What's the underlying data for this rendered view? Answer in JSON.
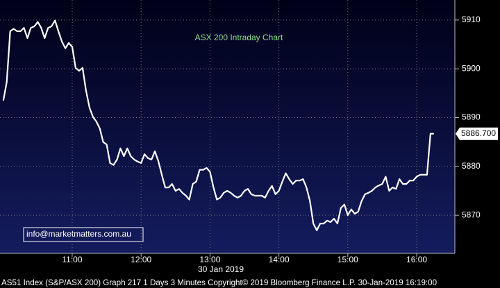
{
  "chart_data": {
    "type": "line",
    "title": "ASX 200 Intraday Chart",
    "annotation": "info@marketmatters.com.au",
    "date_label": "30 Jan 2019",
    "footer": "AS51 Index (S&P/ASX 200) Graph 217 1 Days 3 Minutes Copyright© 2019 Bloomberg Finance L.P. 30-Jan-2019 16:19:00",
    "last_label": "5886.700",
    "x": [
      10,
      10.05,
      10.1,
      10.15,
      10.2,
      10.25,
      10.3,
      10.35,
      10.4,
      10.45,
      10.5,
      10.55,
      10.6,
      10.65,
      10.7,
      10.75,
      10.8,
      10.85,
      10.9,
      10.95,
      11,
      11.05,
      11.1,
      11.15,
      11.2,
      11.25,
      11.3,
      11.35,
      11.4,
      11.45,
      11.5,
      11.55,
      11.6,
      11.65,
      11.7,
      11.75,
      11.8,
      11.85,
      11.9,
      11.95,
      12,
      12.05,
      12.1,
      12.15,
      12.2,
      12.25,
      12.3,
      12.35,
      12.4,
      12.45,
      12.5,
      12.55,
      12.6,
      12.65,
      12.7,
      12.75,
      12.8,
      12.85,
      12.9,
      12.95,
      13,
      13.05,
      13.1,
      13.15,
      13.2,
      13.25,
      13.3,
      13.35,
      13.4,
      13.45,
      13.5,
      13.55,
      13.6,
      13.65,
      13.7,
      13.75,
      13.8,
      13.85,
      13.9,
      13.95,
      14,
      14.05,
      14.1,
      14.15,
      14.2,
      14.25,
      14.3,
      14.35,
      14.4,
      14.45,
      14.5,
      14.55,
      14.6,
      14.65,
      14.7,
      14.75,
      14.8,
      14.85,
      14.9,
      14.95,
      15,
      15.05,
      15.1,
      15.15,
      15.2,
      15.25,
      15.3,
      15.35,
      15.4,
      15.45,
      15.5,
      15.55,
      15.6,
      15.65,
      15.7,
      15.75,
      15.8,
      15.85,
      15.9,
      15.95,
      16,
      16.05,
      16.1,
      16.15,
      16.2,
      16.25
    ],
    "series": [
      {
        "name": "AS51 Index",
        "color": "#ffffff",
        "values": [
          5893.5,
          5897.3,
          5907.7,
          5908.2,
          5907.7,
          5907.7,
          5908.4,
          5906.3,
          5908.4,
          5908.7,
          5909.6,
          5908.4,
          5906.3,
          5908.4,
          5908.7,
          5909.9,
          5907.7,
          5905.6,
          5904.2,
          5905.3,
          5904.5,
          5900.2,
          5899.6,
          5900.2,
          5895.6,
          5892.1,
          5890.2,
          5889.2,
          5887.8,
          5885.0,
          5884.5,
          5880.7,
          5880.3,
          5881.4,
          5883.7,
          5882.1,
          5883.7,
          5882.1,
          5881.4,
          5881.0,
          5880.7,
          5882.5,
          5881.7,
          5881.4,
          5883.1,
          5881.1,
          5878.3,
          5875.7,
          5875.7,
          5876.4,
          5875.0,
          5875.4,
          5874.6,
          5874.0,
          5873.2,
          5876.4,
          5876.9,
          5879.3,
          5879.3,
          5879.7,
          5878.9,
          5875.7,
          5873.2,
          5873.6,
          5874.6,
          5875.0,
          5874.6,
          5874.0,
          5873.6,
          5874.0,
          5875.0,
          5875.4,
          5874.3,
          5874.0,
          5874.0,
          5874.0,
          5873.6,
          5875.0,
          5876.0,
          5874.3,
          5875.0,
          5876.9,
          5878.6,
          5877.4,
          5876.4,
          5877.1,
          5877.1,
          5877.4,
          5875.7,
          5872.9,
          5868.3,
          5866.9,
          5868.3,
          5868.3,
          5868.9,
          5868.6,
          5869.3,
          5868.3,
          5871.5,
          5872.2,
          5870.0,
          5871.2,
          5870.3,
          5870.7,
          5872.9,
          5874.3,
          5874.6,
          5875.0,
          5875.7,
          5876.1,
          5876.4,
          5877.9,
          5875.0,
          5875.7,
          5875.4,
          5877.4,
          5876.4,
          5876.4,
          5877.1,
          5877.1,
          5877.9,
          5878.3,
          5878.3,
          5878.3,
          5886.7,
          5886.7
        ]
      }
    ],
    "xlim": [
      9.952,
      16.554
    ],
    "xticks": [
      {
        "value": 11,
        "label": "11:00"
      },
      {
        "value": 12,
        "label": "12:00"
      },
      {
        "value": 13,
        "label": "13:00"
      },
      {
        "value": 14,
        "label": "14:00"
      },
      {
        "value": 15,
        "label": "15:00"
      },
      {
        "value": 16,
        "label": "16:00"
      }
    ],
    "ylim": [
      5862.2,
      5914.1
    ],
    "yticks": [
      5870,
      5880,
      5890,
      5900,
      5910
    ],
    "grid": true
  }
}
